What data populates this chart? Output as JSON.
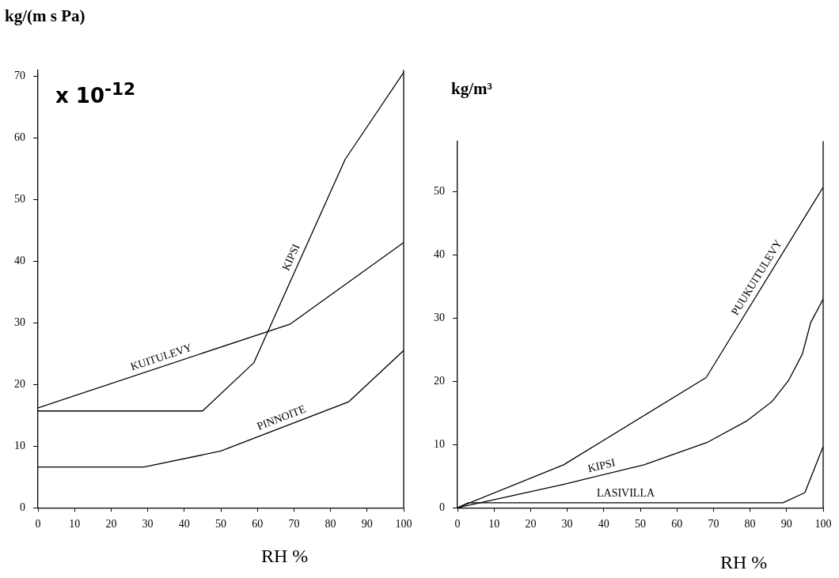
{
  "chart_data": [
    {
      "type": "line",
      "ylabel": "kg/(m s Pa)",
      "xlabel": "RH %",
      "annotations": [
        "x 10$^{-12}$"
      ],
      "xlim": [
        0,
        100
      ],
      "xticks": [
        0,
        10,
        20,
        30,
        40,
        50,
        60,
        70,
        80,
        90,
        100
      ],
      "ylim": [
        0,
        71
      ],
      "yticks": [
        0,
        10,
        20,
        30,
        40,
        50,
        60,
        70
      ],
      "grid": false,
      "legend": false,
      "marker": "none",
      "line_style": "solid",
      "series": [
        {
          "name": "KIPSI",
          "color": "#000000",
          "x": [
            0,
            45,
            59,
            84,
            100
          ],
          "values": [
            15.7,
            15.7,
            23.5,
            56.5,
            70.6
          ]
        },
        {
          "name": "KUITULEVY",
          "color": "#000000",
          "x": [
            0,
            69,
            100
          ],
          "values": [
            16.2,
            29.8,
            43
          ]
        },
        {
          "name": "PINNOITE",
          "color": "#000000",
          "x": [
            0,
            29,
            50,
            85,
            100
          ],
          "values": [
            6.6,
            6.6,
            9.2,
            17.2,
            25.5
          ]
        }
      ]
    },
    {
      "type": "line",
      "ylabel": "kg/m³",
      "xlabel": "RH %",
      "xlim": [
        0,
        100
      ],
      "xticks": [
        0,
        10,
        20,
        30,
        40,
        50,
        60,
        70,
        80,
        90,
        100
      ],
      "ylim": [
        0,
        58
      ],
      "yticks": [
        0,
        10,
        20,
        30,
        40,
        50
      ],
      "grid": false,
      "legend": false,
      "marker": "none",
      "line_style": "solid",
      "series": [
        {
          "name": "PUUKUITULEVY",
          "color": "#000000",
          "x": [
            0,
            29,
            68,
            100
          ],
          "values": [
            0,
            6.8,
            20.6,
            50.7
          ]
        },
        {
          "name": "KIPSI",
          "color": "#000000",
          "x": [
            0,
            29,
            51,
            68.5,
            79,
            86,
            90.5,
            94.3,
            96.6,
            100
          ],
          "values": [
            0,
            3.7,
            6.8,
            10.4,
            13.7,
            16.8,
            20.1,
            24.3,
            29.3,
            33
          ]
        },
        {
          "name": "LASIVILLA",
          "color": "#000000",
          "x": [
            0,
            3,
            89,
            95,
            100
          ],
          "values": [
            0,
            0.8,
            0.8,
            2.4,
            9.7
          ]
        }
      ]
    }
  ]
}
